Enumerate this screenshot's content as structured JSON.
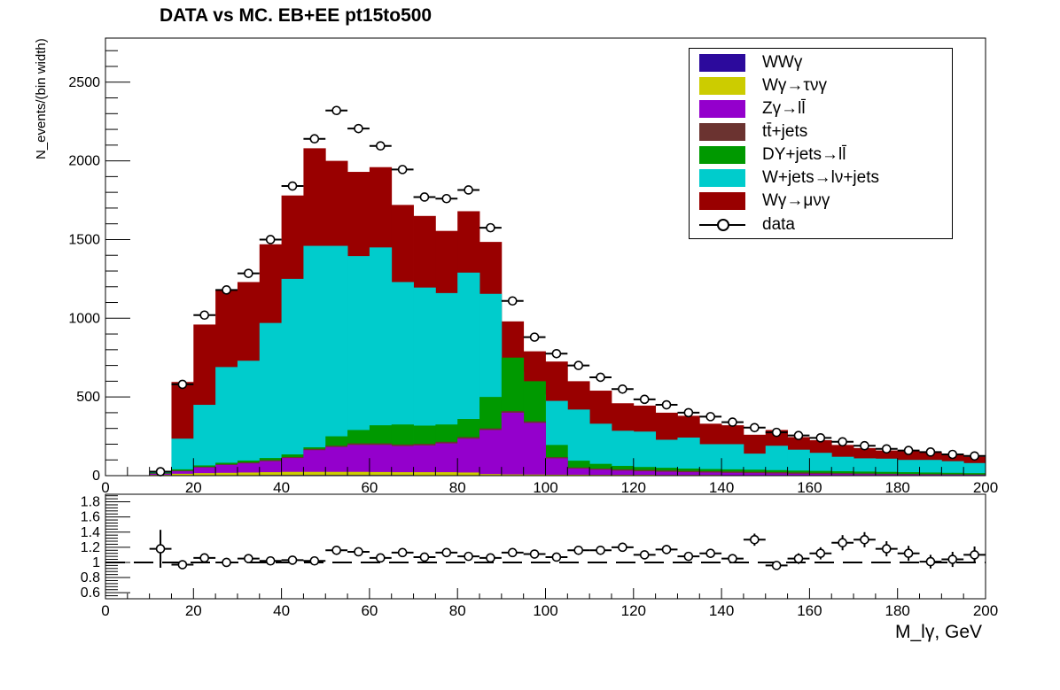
{
  "chart_data": [
    {
      "type": "stacked-histogram",
      "title": "DATA vs MC. EB+EE  pt15to500",
      "ylabel": "N_events/(bin width)",
      "xlim": [
        0,
        200
      ],
      "ylim": [
        0,
        2780
      ],
      "x_ticks": [
        0,
        20,
        40,
        60,
        80,
        100,
        120,
        140,
        160,
        180,
        200
      ],
      "y_ticks": [
        0,
        500,
        1000,
        1500,
        2000,
        2500
      ],
      "bin_width": 5,
      "bin_edges_start": 10,
      "legend_position": "top-right",
      "stack_order_bottom_to_top": [
        "WWγ",
        "Wγ→τνγ",
        "Zγ→ll̄",
        "tt̄+jets",
        "DY+jets→ll̄",
        "W+jets→lν+jets",
        "Wγ→μνγ"
      ],
      "series": [
        {
          "name": "WWγ",
          "label": "WWγ",
          "color": "#2c0a9c",
          "cumulative": [
            1,
            2,
            3,
            3,
            3,
            4,
            4,
            4,
            4,
            4,
            4,
            4,
            3,
            3,
            3,
            2,
            2,
            2,
            2,
            2,
            1,
            1,
            1,
            1,
            1,
            1,
            1,
            1,
            1,
            1,
            1,
            1,
            1,
            1,
            1,
            1,
            1,
            1
          ]
        },
        {
          "name": "Wγ→τνγ",
          "label": "Wγ→τνγ",
          "color": "#cccc00",
          "cumulative": [
            5,
            12,
            16,
            18,
            20,
            22,
            24,
            24,
            24,
            24,
            23,
            22,
            22,
            22,
            20,
            10,
            8,
            7,
            6,
            6,
            5,
            5,
            5,
            4,
            4,
            4,
            3,
            3,
            3,
            3,
            3,
            3,
            3,
            3,
            3,
            3,
            3,
            2
          ]
        },
        {
          "name": "Zγ→ll̄",
          "label": "Zγ→ll̄",
          "color": "#9400cc",
          "cumulative": [
            12,
            28,
            52,
            68,
            78,
            92,
            112,
            162,
            182,
            195,
            195,
            188,
            192,
            205,
            235,
            290,
            400,
            335,
            110,
            45,
            38,
            32,
            28,
            25,
            22,
            20,
            18,
            16,
            14,
            12,
            11,
            10,
            9,
            8,
            7,
            6,
            6,
            5
          ]
        },
        {
          "name": "tt̄+jets",
          "label": "tt̄+jets",
          "color": "#6b3330",
          "cumulative": [
            14,
            32,
            56,
            72,
            84,
            98,
            118,
            170,
            190,
            205,
            205,
            198,
            202,
            215,
            245,
            300,
            410,
            345,
            118,
            52,
            45,
            40,
            36,
            33,
            30,
            28,
            26,
            24,
            22,
            20,
            18,
            16,
            14,
            12,
            11,
            10,
            9,
            8
          ]
        },
        {
          "name": "DY+jets→ll̄",
          "label": "DY+jets→ll̄",
          "color": "#009900",
          "cumulative": [
            18,
            40,
            65,
            82,
            96,
            112,
            135,
            180,
            250,
            290,
            320,
            325,
            318,
            325,
            360,
            500,
            750,
            600,
            195,
            95,
            75,
            62,
            55,
            50,
            45,
            42,
            40,
            38,
            35,
            32,
            30,
            28,
            26,
            24,
            22,
            20,
            18,
            16
          ]
        },
        {
          "name": "W+jets→lν+jets",
          "label": "W+jets→lν+jets",
          "color": "#00cccc",
          "cumulative": [
            20,
            235,
            450,
            690,
            730,
            970,
            1250,
            1460,
            1460,
            1395,
            1450,
            1230,
            1195,
            1160,
            1290,
            1155,
            660,
            515,
            475,
            420,
            330,
            285,
            280,
            228,
            242,
            200,
            200,
            140,
            190,
            165,
            145,
            120,
            110,
            108,
            100,
            100,
            92,
            80
          ]
        },
        {
          "name": "Wγ→μνγ",
          "label": "Wγ→μνγ",
          "color": "#990000",
          "cumulative": [
            25,
            595,
            960,
            1180,
            1230,
            1470,
            1780,
            2080,
            2000,
            1930,
            1960,
            1720,
            1650,
            1555,
            1680,
            1485,
            980,
            790,
            725,
            600,
            540,
            460,
            445,
            400,
            380,
            330,
            320,
            260,
            290,
            245,
            225,
            195,
            175,
            160,
            155,
            150,
            140,
            120
          ]
        }
      ],
      "data_series": {
        "name": "data",
        "label": "data",
        "x": [
          12.5,
          17.5,
          22.5,
          27.5,
          32.5,
          37.5,
          42.5,
          47.5,
          52.5,
          57.5,
          62.5,
          67.5,
          72.5,
          77.5,
          82.5,
          87.5,
          92.5,
          97.5,
          102.5,
          107.5,
          112.5,
          117.5,
          122.5,
          127.5,
          132.5,
          137.5,
          142.5,
          147.5,
          152.5,
          157.5,
          162.5,
          167.5,
          172.5,
          177.5,
          182.5,
          187.5,
          192.5,
          197.5
        ],
        "y": [
          25,
          580,
          1020,
          1180,
          1285,
          1500,
          1840,
          2140,
          2320,
          2205,
          2095,
          1945,
          1770,
          1760,
          1815,
          1575,
          1110,
          880,
          775,
          700,
          625,
          550,
          485,
          450,
          400,
          375,
          340,
          305,
          275,
          255,
          240,
          215,
          190,
          170,
          160,
          150,
          135,
          125
        ]
      }
    },
    {
      "type": "scatter",
      "xlabel": "M_lγ, GeV",
      "xlim": [
        0,
        200
      ],
      "ylim": [
        0.52,
        1.9
      ],
      "x_ticks": [
        0,
        20,
        40,
        60,
        80,
        100,
        120,
        140,
        160,
        180,
        200
      ],
      "y_ticks": [
        0.6,
        0.8,
        1,
        1.2,
        1.4,
        1.6,
        1.8
      ],
      "reference_line": 1,
      "series": [
        {
          "name": "ratio",
          "x": [
            12.5,
            17.5,
            22.5,
            27.5,
            32.5,
            37.5,
            42.5,
            47.5,
            52.5,
            57.5,
            62.5,
            67.5,
            72.5,
            77.5,
            82.5,
            87.5,
            92.5,
            97.5,
            102.5,
            107.5,
            112.5,
            117.5,
            122.5,
            127.5,
            132.5,
            137.5,
            142.5,
            147.5,
            152.5,
            157.5,
            162.5,
            167.5,
            172.5,
            177.5,
            182.5,
            187.5,
            192.5,
            197.5
          ],
          "y": [
            1.18,
            0.97,
            1.06,
            1.0,
            1.05,
            1.02,
            1.03,
            1.02,
            1.16,
            1.14,
            1.06,
            1.13,
            1.07,
            1.13,
            1.08,
            1.06,
            1.13,
            1.11,
            1.07,
            1.16,
            1.16,
            1.2,
            1.1,
            1.17,
            1.08,
            1.12,
            1.05,
            1.3,
            0.96,
            1.05,
            1.12,
            1.26,
            1.3,
            1.18,
            1.12,
            1.01,
            1.04,
            1.1
          ],
          "err": [
            0.25,
            0.03,
            0.03,
            0.03,
            0.03,
            0.03,
            0.03,
            0.03,
            0.03,
            0.03,
            0.03,
            0.03,
            0.03,
            0.03,
            0.03,
            0.03,
            0.04,
            0.04,
            0.04,
            0.04,
            0.05,
            0.05,
            0.05,
            0.06,
            0.06,
            0.06,
            0.06,
            0.08,
            0.05,
            0.07,
            0.08,
            0.1,
            0.1,
            0.1,
            0.1,
            0.09,
            0.1,
            0.11
          ]
        }
      ]
    }
  ]
}
